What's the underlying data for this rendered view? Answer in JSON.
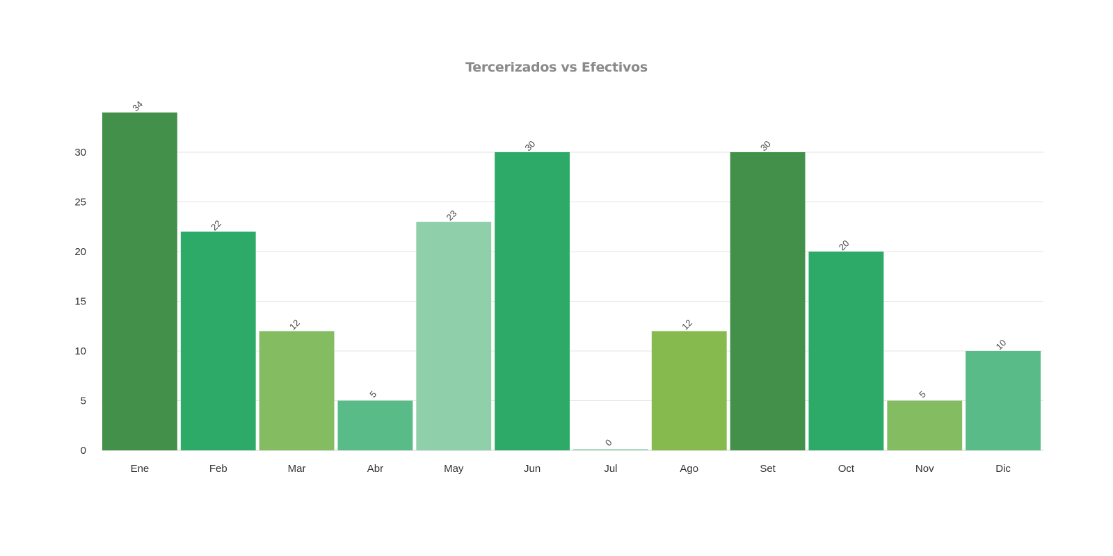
{
  "chart_data": {
    "type": "bar",
    "title": "Tercerizados vs Efectivos",
    "xlabel": "",
    "ylabel": "",
    "categories": [
      "Ene",
      "Feb",
      "Mar",
      "Abr",
      "May",
      "Jun",
      "Jul",
      "Ago",
      "Set",
      "Oct",
      "Nov",
      "Dic"
    ],
    "values": [
      34,
      22,
      12,
      5,
      23,
      30,
      0,
      12,
      30,
      20,
      5,
      10
    ],
    "data_labels": [
      "34",
      "22",
      "12",
      "5",
      "23",
      "30",
      "0",
      "12",
      "30",
      "20",
      "5",
      "10"
    ],
    "colors": [
      "#43904a",
      "#2daa67",
      "#84bd61",
      "#59bb87",
      "#8fd0ab",
      "#2daa67",
      "#a8dcc0",
      "#86b94e",
      "#43904a",
      "#2daa67",
      "#84bd61",
      "#59bb87"
    ],
    "yticks": [
      "0",
      "5",
      "10",
      "15",
      "20",
      "25",
      "30"
    ],
    "ylim": [
      0,
      34
    ],
    "grid": true,
    "legend": "none"
  }
}
